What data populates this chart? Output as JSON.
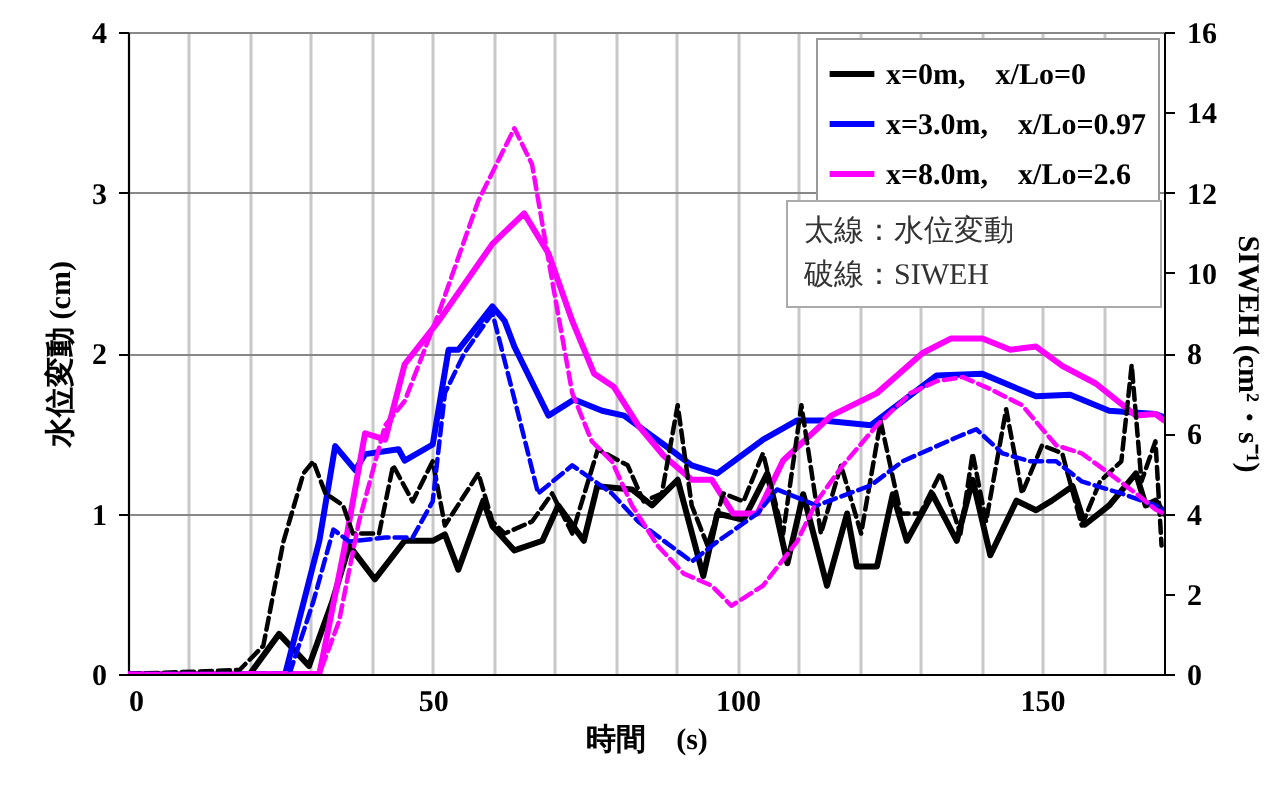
{
  "chart_data": {
    "type": "line",
    "xlabel": "時間　(s)",
    "ylabel": "水位変動 (cm)",
    "y2label": "SIWEH (cm²・s⁻¹)",
    "xlim": [
      0,
      170
    ],
    "xticks": [
      0,
      {
        "value": 10,
        "label": null
      },
      {
        "value": 20,
        "label": null
      },
      {
        "value": 30,
        "label": null
      },
      {
        "value": 40,
        "label": null
      },
      50,
      {
        "value": 60,
        "label": null
      },
      {
        "value": 70,
        "label": null
      },
      {
        "value": 80,
        "label": null
      },
      {
        "value": 90,
        "label": null
      },
      100,
      {
        "value": 110,
        "label": null
      },
      {
        "value": 120,
        "label": null
      },
      {
        "value": 130,
        "label": null
      },
      {
        "value": 140,
        "label": null
      },
      150,
      {
        "value": 160,
        "label": null
      }
    ],
    "ylim": [
      0,
      4
    ],
    "yticks": [
      0,
      1,
      2,
      3,
      4
    ],
    "y2lim": [
      0,
      16
    ],
    "y2ticks": [
      0,
      2,
      4,
      6,
      8,
      10,
      12,
      14,
      16
    ],
    "grid": true,
    "legend": "top right",
    "annotations": [
      "太線：水位変動",
      "破線：SIWEH"
    ],
    "series": [
      {
        "name": "x=0m,　x/Lo=0",
        "color": "#000000",
        "line_style": "solid",
        "x": [
          0,
          20,
          24.8,
          29.7,
          33.6,
          36.3,
          40.5,
          45.4,
          50,
          52,
          54.2,
          58.3,
          59.8,
          63.4,
          68,
          70.6,
          74.8,
          77,
          82.7,
          86,
          90.2,
          94.4,
          96.7,
          101,
          104.9,
          108.2,
          110.8,
          114.7,
          118,
          119.6,
          122.9,
          125.5,
          127.8,
          132,
          136,
          138.6,
          141.5,
          145.8,
          149,
          151.6,
          155,
          157,
          161,
          165.4,
          167,
          168.6,
          170
        ],
        "values": [
          0,
          0,
          0.25,
          0.05,
          0.46,
          0.8,
          0.59,
          0.83,
          0.83,
          0.87,
          0.65,
          1.08,
          0.92,
          0.77,
          0.83,
          1.05,
          0.83,
          1.17,
          1.15,
          1.05,
          1.21,
          0.61,
          1.0,
          0.96,
          1.25,
          0.69,
          1.12,
          0.55,
          1.0,
          0.67,
          0.67,
          1.12,
          0.83,
          1.12,
          0.83,
          1.21,
          0.74,
          1.08,
          1.02,
          1.08,
          1.17,
          0.93,
          1.05,
          1.25,
          1.05,
          1.08,
          1.0
        ]
      },
      {
        "name": "x=3.0m,　x/Lo=0.97",
        "color": "#0000ff",
        "line_style": "solid",
        "x": [
          0,
          25.8,
          31.4,
          34,
          37.3,
          38.9,
          44.4,
          45.4,
          50,
          52.6,
          54.2,
          59.8,
          61.8,
          63.4,
          69,
          73.2,
          77.8,
          81.4,
          87.9,
          92.5,
          96.7,
          104.2,
          109.8,
          114,
          121.9,
          132.7,
          140.2,
          149,
          154.6,
          161,
          168.6,
          170
        ],
        "values": [
          0,
          0,
          0.83,
          1.42,
          1.27,
          1.37,
          1.4,
          1.33,
          1.43,
          2.02,
          2.02,
          2.29,
          2.2,
          2.04,
          1.61,
          1.71,
          1.64,
          1.61,
          1.43,
          1.3,
          1.25,
          1.46,
          1.58,
          1.58,
          1.55,
          1.86,
          1.87,
          1.73,
          1.74,
          1.64,
          1.62,
          1.6
        ]
      },
      {
        "name": "x=8.0m,　x/Lo=2.6",
        "color": "#ff00ff",
        "line_style": "solid",
        "x": [
          0,
          31.4,
          35.6,
          38.9,
          42.2,
          45.4,
          51,
          59.8,
          65,
          69,
          72.9,
          76.5,
          79.7,
          83.7,
          87.9,
          92.5,
          95.8,
          99.3,
          103.3,
          107.5,
          115.4,
          122.9,
          130.4,
          135,
          140.2,
          144.8,
          149,
          153.3,
          158.8,
          165.4,
          168.6,
          170
        ],
        "values": [
          0,
          0,
          0.8,
          1.5,
          1.46,
          1.93,
          2.2,
          2.68,
          2.87,
          2.62,
          2.2,
          1.87,
          1.79,
          1.55,
          1.36,
          1.21,
          1.21,
          1.0,
          1.0,
          1.33,
          1.61,
          1.75,
          2.0,
          2.09,
          2.09,
          2.02,
          2.04,
          1.92,
          1.81,
          1.61,
          1.62,
          1.58
        ]
      },
      {
        "color": "#000000",
        "line_style": "dashed",
        "axis": "y2",
        "x": [
          0,
          18.3,
          22.2,
          25.5,
          28.8,
          30.4,
          32.4,
          35.3,
          36.9,
          41.2,
          43.5,
          46.7,
          50,
          52,
          57.5,
          59.8,
          61.8,
          66.3,
          69.6,
          72.9,
          77.1,
          82,
          84.6,
          87.6,
          90.2,
          92.5,
          95.1,
          97.7,
          101,
          104.2,
          107.5,
          110.5,
          113.7,
          117,
          120.3,
          123.5,
          126.8,
          130,
          133.3,
          136.6,
          138.6,
          140.8,
          144.1,
          146.7,
          150,
          153.3,
          156.5,
          159.5,
          163,
          164.7,
          166.3,
          168.6,
          169.6
        ],
        "values": [
          0,
          0.1,
          0.7,
          3.3,
          5.0,
          5.3,
          4.5,
          4.2,
          3.5,
          3.5,
          5.2,
          4.3,
          5.3,
          3.7,
          5.0,
          3.8,
          3.5,
          3.8,
          4.5,
          3.5,
          5.6,
          5.2,
          4.3,
          4.5,
          6.7,
          4.2,
          3.2,
          4.5,
          4.3,
          5.5,
          3.5,
          6.7,
          3.5,
          5.2,
          3.5,
          6.3,
          4.0,
          4.0,
          5.0,
          3.5,
          5.5,
          3.8,
          6.6,
          4.5,
          5.7,
          5.5,
          3.7,
          4.8,
          5.3,
          7.7,
          4.8,
          5.8,
          3.2
        ]
      },
      {
        "color": "#0000ff",
        "line_style": "dashed",
        "axis": "y2",
        "x": [
          0,
          26.5,
          30.4,
          33.7,
          36.3,
          42.2,
          46.7,
          50,
          52,
          55.2,
          59.8,
          64,
          67.3,
          72.9,
          79.4,
          83.7,
          92.5,
          96.7,
          103.3,
          106.5,
          113,
          121.9,
          127.1,
          136,
          139.2,
          143.5,
          148,
          152.3,
          156.5,
          163,
          168.6,
          170
        ],
        "values": [
          0,
          0,
          1.8,
          3.6,
          3.3,
          3.4,
          3.4,
          4.3,
          7.0,
          8.0,
          9.0,
          6.5,
          4.5,
          5.2,
          4.5,
          3.8,
          2.8,
          3.3,
          4.0,
          4.6,
          4.2,
          4.7,
          5.3,
          5.9,
          6.1,
          5.5,
          5.3,
          5.3,
          4.8,
          4.5,
          4.2,
          4.1
        ]
      },
      {
        "color": "#ff00ff",
        "line_style": "dashed",
        "axis": "y2",
        "x": [
          0,
          31.4,
          34.6,
          37.9,
          42.2,
          45.4,
          51,
          57.5,
          63.4,
          66.3,
          69.6,
          72.9,
          76.1,
          79.4,
          82.7,
          86.9,
          91.2,
          95.8,
          99,
          104.2,
          109.8,
          113,
          117.3,
          122.9,
          128.4,
          132.7,
          137,
          141.5,
          146.7,
          152.3,
          156.5,
          161,
          165.4,
          168.6,
          170
        ],
        "values": [
          0,
          0,
          1.3,
          3.8,
          6.2,
          6.8,
          9.0,
          11.8,
          13.6,
          12.7,
          9.8,
          7.0,
          5.8,
          5.3,
          4.2,
          3.2,
          2.5,
          2.2,
          1.7,
          2.2,
          3.3,
          4.3,
          5.2,
          6.2,
          7.0,
          7.3,
          7.4,
          7.1,
          6.7,
          5.7,
          5.5,
          5.0,
          4.5,
          4.1,
          4.0
        ]
      }
    ]
  }
}
